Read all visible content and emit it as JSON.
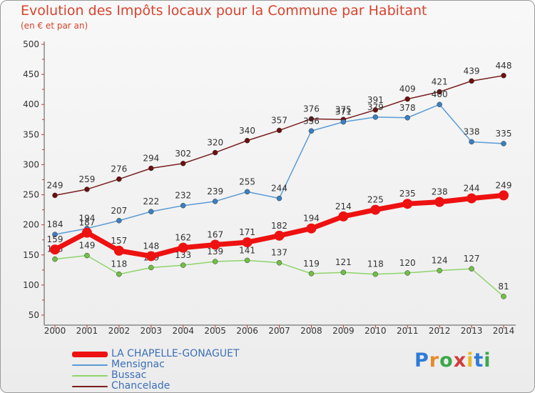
{
  "title": "Evolution des Impôts locaux pour la Commune par Habitant",
  "subtitle": "(en € et par an)",
  "logo": "Proxiti",
  "chart_data": {
    "type": "line",
    "x": [
      2000,
      2001,
      2002,
      2003,
      2004,
      2005,
      2006,
      2007,
      2008,
      2009,
      2010,
      2011,
      2012,
      2013,
      2014
    ],
    "ylim": [
      50,
      500
    ],
    "yticks": [
      50,
      100,
      150,
      200,
      250,
      300,
      350,
      400,
      450,
      500
    ],
    "grid": false,
    "legend_position": "bottom-left",
    "series": [
      {
        "name": "Chancelade",
        "color": "#7a1f1f",
        "dot": "#6b1010",
        "values": [
          249,
          259,
          276,
          294,
          302,
          320,
          340,
          357,
          376,
          375,
          391,
          409,
          421,
          439,
          448
        ]
      },
      {
        "name": "Mensignac",
        "color": "#5b9bd5",
        "dot": "#3d7fc0",
        "values": [
          184,
          194,
          207,
          222,
          232,
          239,
          255,
          244,
          356,
          371,
          379,
          378,
          400,
          338,
          335
        ]
      },
      {
        "name": "Bussac",
        "color": "#8fd46a",
        "dot": "#6fc045",
        "values": [
          143,
          149,
          118,
          129,
          133,
          139,
          141,
          137,
          119,
          121,
          118,
          120,
          124,
          127,
          81
        ]
      },
      {
        "name": "LA CHAPELLE-GONAGUET",
        "color": "#ee1111",
        "dot": "#ee1111",
        "values": [
          159,
          187,
          157,
          148,
          162,
          167,
          171,
          182,
          194,
          214,
          225,
          235,
          238,
          244,
          249
        ]
      }
    ],
    "labels": [
      [
        "249",
        "259",
        "276",
        "294",
        "302",
        "320",
        "340",
        "357",
        "376",
        "375",
        "391",
        "409",
        "421",
        "439",
        "448"
      ],
      [
        "184",
        "194",
        "207",
        "222",
        "232",
        "239",
        "255",
        "244",
        "356",
        "371",
        "379",
        "378",
        "400",
        "338",
        "335"
      ],
      [
        "143",
        "149",
        "118",
        "129",
        "133",
        "139",
        "141",
        "137",
        "119",
        "121",
        "118",
        "120",
        "124",
        "127",
        "81"
      ],
      [
        "159",
        "187",
        "157",
        "148",
        "162",
        "167",
        "171",
        "182",
        "194",
        "214",
        "225",
        "235",
        "238",
        "244",
        "249"
      ]
    ]
  },
  "legend": [
    {
      "name": "LA CHAPELLE-GONAGUET",
      "color": "#ee1111"
    },
    {
      "name": "Mensignac",
      "color": "#5b9bd5"
    },
    {
      "name": "Bussac",
      "color": "#8fd46a"
    },
    {
      "name": "Chancelade",
      "color": "#7a1f1f"
    }
  ]
}
